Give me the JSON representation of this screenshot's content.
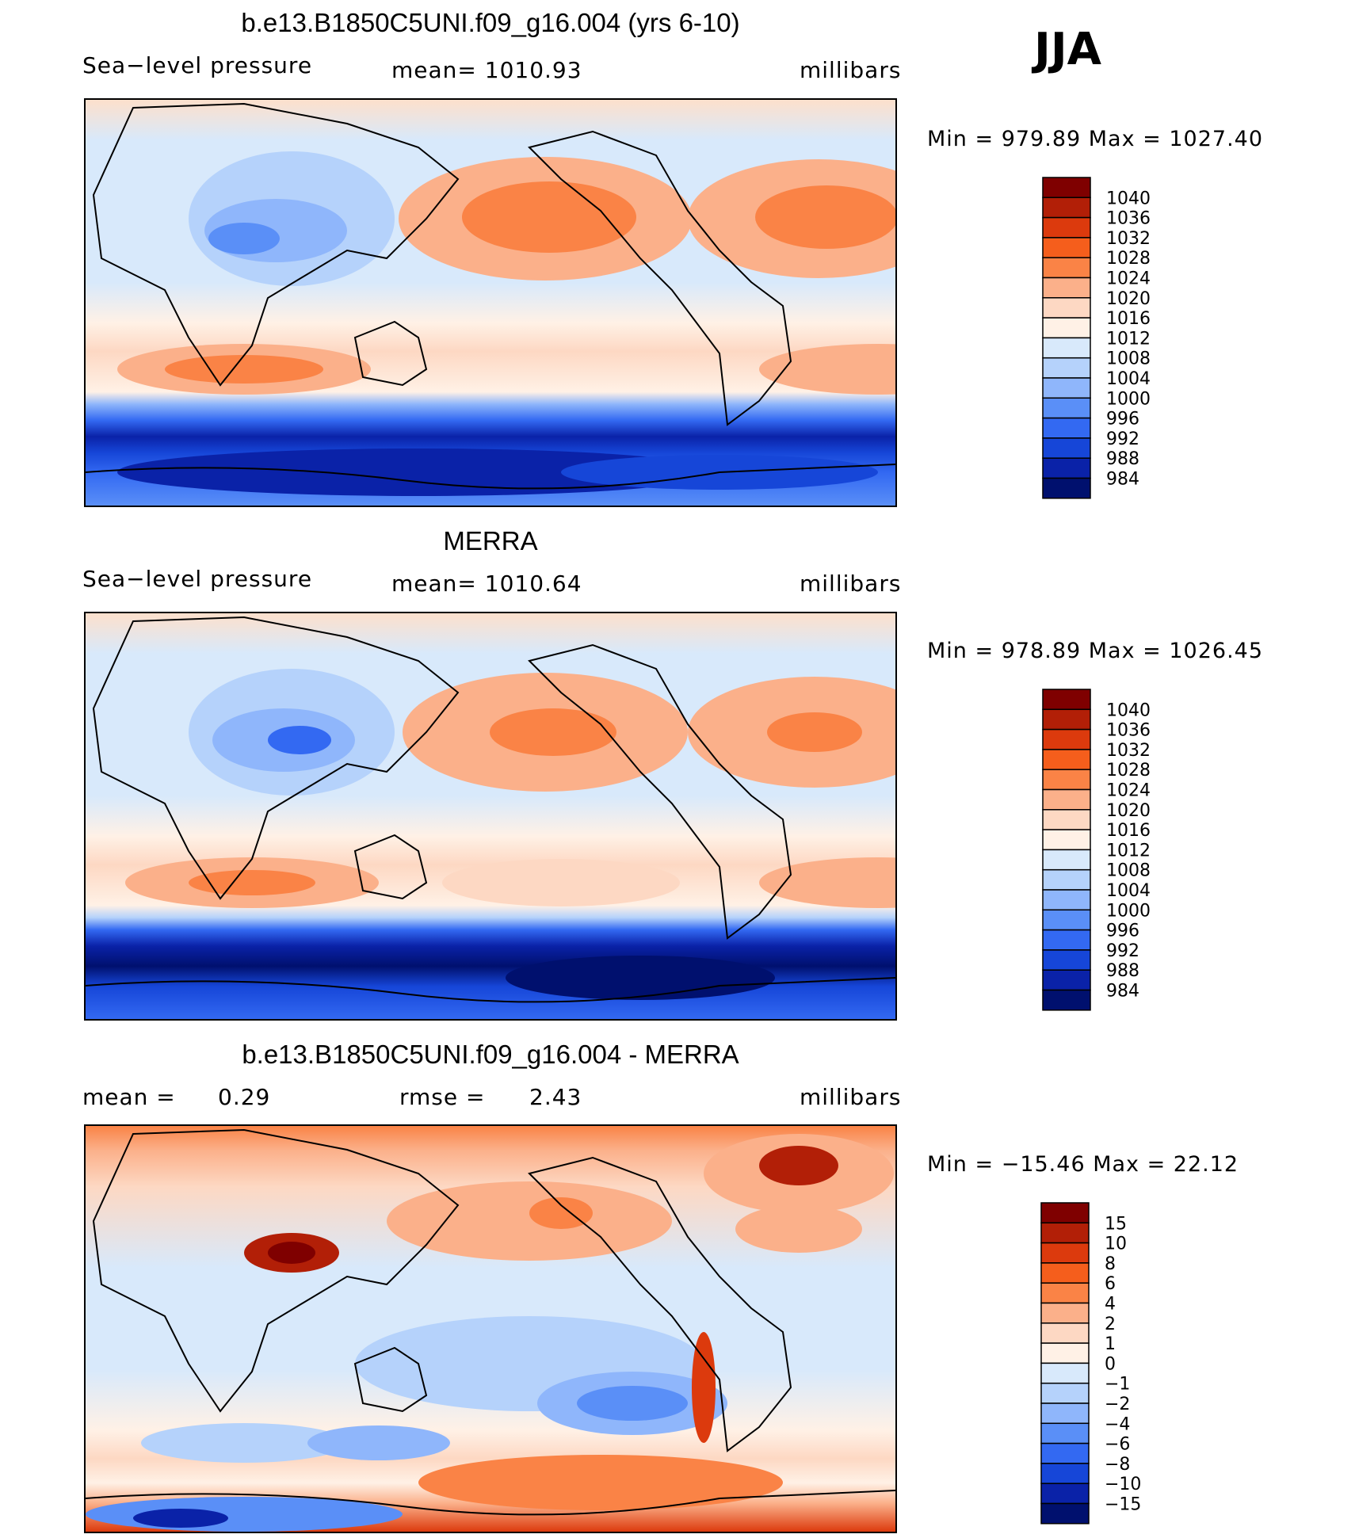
{
  "season": "JJA",
  "chart_data": [
    {
      "type": "heatmap",
      "title": "b.e13.B1850C5UNI.f09_g16.004 (yrs 6-10)",
      "variable": "Sea−level pressure",
      "stat_left": "",
      "mean_text": "mean=  1010.93",
      "units": "millibars",
      "min_max_text": "Min  =  979.89  Max  =  1027.40",
      "min": 979.89,
      "max": 1027.4,
      "mean": 1010.93,
      "colorbar_levels": [
        "1040",
        "1036",
        "1032",
        "1028",
        "1024",
        "1020",
        "1016",
        "1012",
        "1008",
        "1004",
        "1000",
        "996",
        "992",
        "988",
        "984"
      ],
      "colors": [
        "#7f0000",
        "#b21f07",
        "#dc3a0d",
        "#f55e1c",
        "#fa8346",
        "#fbb08a",
        "#fdd8c3",
        "#fff1e6",
        "#d8e9fb",
        "#b5d2fb",
        "#8fb6fb",
        "#5a8ff7",
        "#3369f2",
        "#1646d8",
        "#0a22a8",
        "#00106e"
      ]
    },
    {
      "type": "heatmap",
      "title": "MERRA",
      "variable": "Sea−level pressure",
      "mean_text": "mean=  1010.64",
      "units": "millibars",
      "min_max_text": "Min  =  978.89  Max  =  1026.45",
      "min": 978.89,
      "max": 1026.45,
      "mean": 1010.64,
      "colorbar_levels": [
        "1040",
        "1036",
        "1032",
        "1028",
        "1024",
        "1020",
        "1016",
        "1012",
        "1008",
        "1004",
        "1000",
        "996",
        "992",
        "988",
        "984"
      ],
      "colors": [
        "#7f0000",
        "#b21f07",
        "#dc3a0d",
        "#f55e1c",
        "#fa8346",
        "#fbb08a",
        "#fdd8c3",
        "#fff1e6",
        "#d8e9fb",
        "#b5d2fb",
        "#8fb6fb",
        "#5a8ff7",
        "#3369f2",
        "#1646d8",
        "#0a22a8",
        "#00106e"
      ]
    },
    {
      "type": "heatmap",
      "title": "b.e13.B1850C5UNI.f09_g16.004 - MERRA",
      "mean_label": "mean  =",
      "mean_value": "0.29",
      "rmse_label": "rmse  =",
      "rmse_value": "2.43",
      "units": "millibars",
      "min_max_text": "Min  =  −15.46  Max  =    22.12",
      "min": -15.46,
      "max": 22.12,
      "mean": 0.29,
      "rmse": 2.43,
      "colorbar_levels": [
        "15",
        "10",
        "8",
        "6",
        "4",
        "2",
        "1",
        "0",
        "−1",
        "−2",
        "−4",
        "−6",
        "−8",
        "−10",
        "−15"
      ],
      "colors": [
        "#7f0000",
        "#b21f07",
        "#dc3a0d",
        "#f55e1c",
        "#fa8346",
        "#fbb08a",
        "#fdd8c3",
        "#fff1e6",
        "#d8e9fb",
        "#b5d2fb",
        "#8fb6fb",
        "#5a8ff7",
        "#3369f2",
        "#1646d8",
        "#0a22a8",
        "#00106e"
      ]
    }
  ]
}
